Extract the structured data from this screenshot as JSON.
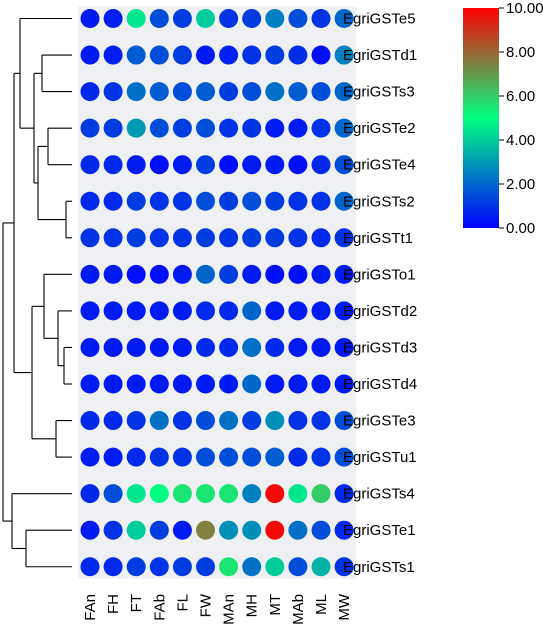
{
  "chart_data": {
    "type": "heatmap",
    "marker": "circle",
    "rows": [
      "EgriGSTe5",
      "EgriGSTd1",
      "EgriGSTs3",
      "EgriGSTe2",
      "EgriGSTe4",
      "EgriGSTs2",
      "EgriGSTt1",
      "EgriGSTo1",
      "EgriGSTd2",
      "EgriGSTd3",
      "EgriGSTd4",
      "EgriGSTe3",
      "EgriGSTu1",
      "EgriGSTs4",
      "EgriGSTe1",
      "EgriGSTs1"
    ],
    "columns": [
      "FAn",
      "FH",
      "FT",
      "FAb",
      "FL",
      "FW",
      "MAn",
      "MH",
      "MT",
      "MAb",
      "ML",
      "MW"
    ],
    "values": [
      [
        0.5,
        0.6,
        4.5,
        1.5,
        1.2,
        4.0,
        1.0,
        1.2,
        2.5,
        1.5,
        1.0,
        2.0
      ],
      [
        0.5,
        0.6,
        1.8,
        1.5,
        1.2,
        0.5,
        0.6,
        1.0,
        1.2,
        0.9,
        0.3,
        2.5
      ],
      [
        0.8,
        1.0,
        2.2,
        1.8,
        1.5,
        1.8,
        1.2,
        1.5,
        2.2,
        1.8,
        1.5,
        2.0
      ],
      [
        1.2,
        1.2,
        3.0,
        1.5,
        1.2,
        1.5,
        1.0,
        1.0,
        0.5,
        0.5,
        1.0,
        2.0
      ],
      [
        0.8,
        0.8,
        0.5,
        0.3,
        0.5,
        1.2,
        0.3,
        0.5,
        0.5,
        0.3,
        0.8,
        1.5
      ],
      [
        0.8,
        0.8,
        1.2,
        1.0,
        1.0,
        1.5,
        1.2,
        1.5,
        1.2,
        1.0,
        1.0,
        2.0
      ],
      [
        1.0,
        1.0,
        1.2,
        1.0,
        1.0,
        1.2,
        1.0,
        1.2,
        1.2,
        1.0,
        0.8,
        1.0
      ],
      [
        0.5,
        0.5,
        0.3,
        0.3,
        0.5,
        2.0,
        1.2,
        0.5,
        0.3,
        0.3,
        0.5,
        0.5
      ],
      [
        0.5,
        0.5,
        0.5,
        0.5,
        0.5,
        0.8,
        0.8,
        2.0,
        0.5,
        0.5,
        0.5,
        0.5
      ],
      [
        0.5,
        0.5,
        0.5,
        0.5,
        0.5,
        0.8,
        0.8,
        2.2,
        0.8,
        0.5,
        0.5,
        0.5
      ],
      [
        0.5,
        0.5,
        0.5,
        0.5,
        0.5,
        0.5,
        0.5,
        2.0,
        0.5,
        0.5,
        0.5,
        0.5
      ],
      [
        0.8,
        0.8,
        1.0,
        2.2,
        1.0,
        1.5,
        2.2,
        1.2,
        2.8,
        1.0,
        1.0,
        1.5
      ],
      [
        0.5,
        0.5,
        0.8,
        1.0,
        1.0,
        1.5,
        1.5,
        1.5,
        1.8,
        0.8,
        1.0,
        1.5
      ],
      [
        0.8,
        1.5,
        4.5,
        5.0,
        5.5,
        5.5,
        5.5,
        2.5,
        9.8,
        4.5,
        6.0,
        0.8
      ],
      [
        0.5,
        1.0,
        4.0,
        1.2,
        0.5,
        7.5,
        2.8,
        2.8,
        9.8,
        2.2,
        1.5,
        0.8
      ],
      [
        0.8,
        0.8,
        1.2,
        1.0,
        1.2,
        1.2,
        5.5,
        2.2,
        4.0,
        1.5,
        3.5,
        1.0
      ]
    ],
    "colorbar": {
      "range": [
        0,
        10
      ],
      "ticks": [
        "0.00",
        "2.00",
        "4.00",
        "6.00",
        "8.00",
        "10.00"
      ],
      "colors": [
        "#0000ff",
        "#00ff80",
        "#ff0000"
      ],
      "position": "right"
    },
    "dendrogram": "left"
  }
}
